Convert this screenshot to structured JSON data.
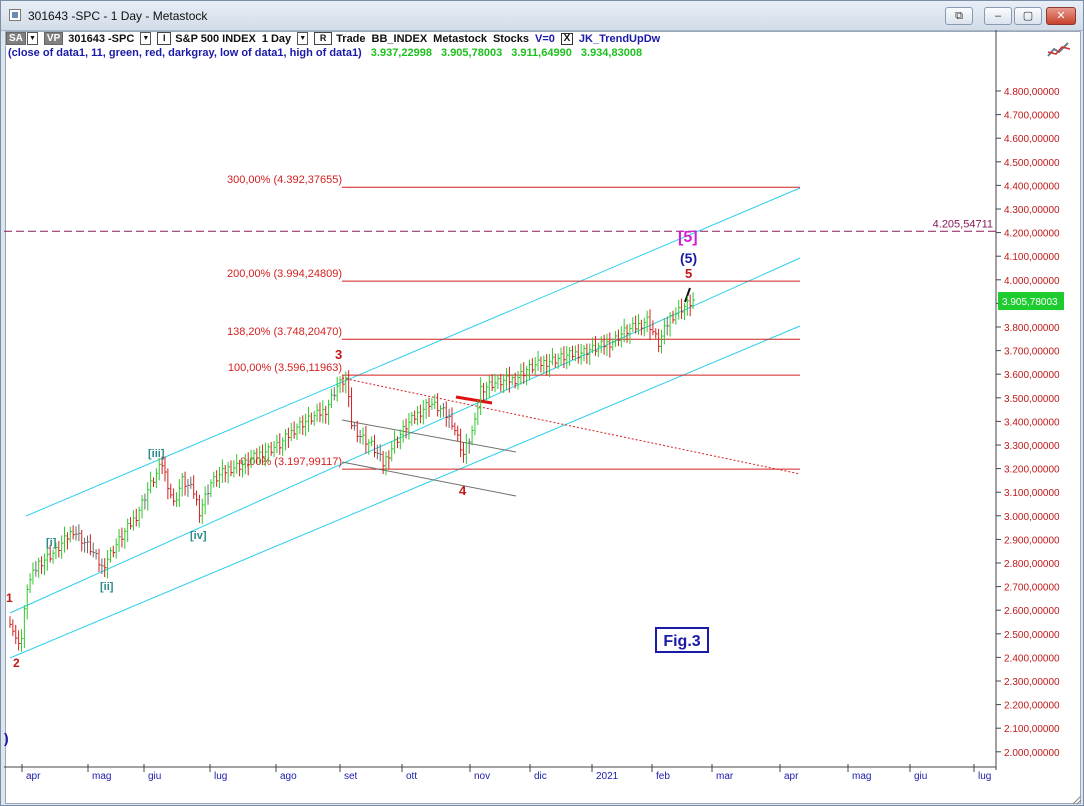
{
  "window": {
    "title": "301643 -SPC - 1 Day - Metastock",
    "buttons": [
      "⧉",
      "–",
      "▢",
      "✕"
    ]
  },
  "toolbar": {
    "sa": "SA",
    "vp": "VP",
    "symbol": "301643 -SPC",
    "i_box": "I",
    "index_name": "S&P 500 INDEX",
    "interval": "1 Day",
    "r_box": "R",
    "trade": "Trade",
    "bb_index": "BB_INDEX",
    "source": "Metastock",
    "type": "Stocks",
    "v": "V=0",
    "x": "X",
    "indicator": "JK_TrendUpDw"
  },
  "indicator_line": {
    "desc": "(close of data1,  11,  green,  red,  darkgray,  low of data1,  high of data1)",
    "values": [
      "3.937,22998",
      "3.905,78003",
      "3.911,64990",
      "3.934,83008"
    ]
  },
  "colors": {
    "up_bar": "#2ec82e",
    "down_bar": "#d02020",
    "neutral_bar": "#6a6a6a",
    "channel": "#2dd0ec",
    "fib": "#d42020",
    "target_dash": "#8a1a5a",
    "trend_gray": "#707070",
    "axis_text": "#c01818",
    "month_text": "#1a1aa8",
    "price_tag": "#1fcc2f"
  },
  "chart_data": {
    "type": "line",
    "title": "",
    "subtitle": "",
    "xlabel": "",
    "ylabel": "",
    "ylim": [
      2000,
      4900
    ],
    "grid": false,
    "y_ticks": [
      "4.800,00000",
      "4.700,00000",
      "4.600,00000",
      "4.500,00000",
      "4.400,00000",
      "4.300,00000",
      "4.200,00000",
      "4.100,00000",
      "4.000,00000",
      "3.900,00000",
      "3.800,00000",
      "3.700,00000",
      "3.600,00000",
      "3.500,00000",
      "3.400,00000",
      "3.300,00000",
      "3.200,00000",
      "3.100,00000",
      "3.000,00000",
      "2.900,00000",
      "2.800,00000",
      "2.700,00000",
      "2.600,00000",
      "2.500,00000",
      "2.400,00000",
      "2.300,00000",
      "2.200,00000",
      "2.100,00000",
      "2.000,00000"
    ],
    "x_ticks": [
      "apr",
      "mag",
      "giu",
      "lug",
      "ago",
      "set",
      "ott",
      "nov",
      "dic",
      "2021",
      "feb",
      "mar",
      "apr",
      "mag",
      "giu",
      "lug"
    ],
    "series": [
      {
        "points": [
          [
            0,
            2560
          ],
          [
            2,
            2470
          ],
          [
            4,
            2480
          ],
          [
            6,
            2700
          ],
          [
            10,
            2800
          ],
          [
            16,
            2850
          ],
          [
            22,
            2940
          ],
          [
            28,
            2860
          ],
          [
            32,
            2780
          ],
          [
            36,
            2860
          ],
          [
            40,
            2930
          ],
          [
            44,
            3000
          ],
          [
            48,
            3110
          ],
          [
            53,
            3220
          ],
          [
            57,
            3050
          ],
          [
            60,
            3150
          ],
          [
            64,
            3100
          ],
          [
            66,
            3020
          ],
          [
            70,
            3140
          ],
          [
            76,
            3200
          ],
          [
            82,
            3220
          ],
          [
            88,
            3270
          ],
          [
            94,
            3300
          ],
          [
            100,
            3380
          ],
          [
            106,
            3420
          ],
          [
            110,
            3450
          ],
          [
            114,
            3550
          ],
          [
            117,
            3580
          ],
          [
            119,
            3390
          ],
          [
            122,
            3340
          ],
          [
            126,
            3300
          ],
          [
            130,
            3220
          ],
          [
            134,
            3310
          ],
          [
            138,
            3380
          ],
          [
            142,
            3430
          ],
          [
            146,
            3480
          ],
          [
            150,
            3450
          ],
          [
            154,
            3400
          ],
          [
            158,
            3260
          ],
          [
            162,
            3390
          ],
          [
            164,
            3540
          ],
          [
            168,
            3560
          ],
          [
            172,
            3570
          ],
          [
            176,
            3580
          ],
          [
            180,
            3620
          ],
          [
            186,
            3650
          ],
          [
            192,
            3670
          ],
          [
            198,
            3690
          ],
          [
            204,
            3710
          ],
          [
            210,
            3740
          ],
          [
            214,
            3780
          ],
          [
            218,
            3800
          ],
          [
            222,
            3830
          ],
          [
            224,
            3780
          ],
          [
            226,
            3730
          ],
          [
            230,
            3840
          ],
          [
            234,
            3880
          ],
          [
            238,
            3910
          ]
        ]
      }
    ],
    "fib_levels": [
      {
        "label": "300,00% (4.392,37655)",
        "value": 4392.37655
      },
      {
        "label": "200,00% (3.994,24809)",
        "value": 3994.24809
      },
      {
        "label": "138,20% (3.748,20470)",
        "value": 3748.2047
      },
      {
        "label": "100,00% (3.596,11963)",
        "value": 3596.11963
      },
      {
        "label": "0,00% (3.197,99117)",
        "value": 3197.99117
      }
    ],
    "target_level": {
      "label": "4.205,54711",
      "value": 4205.54711
    },
    "last_price": {
      "label": "3.905,78003",
      "value": 3905.78003
    },
    "wave_labels": [
      "1",
      "2",
      "3",
      "4",
      "5",
      "(5)",
      "[5]",
      "[i]",
      "[ii]",
      "[iii]",
      "[iv]",
      ")"
    ],
    "annotation": "Fig.3"
  }
}
